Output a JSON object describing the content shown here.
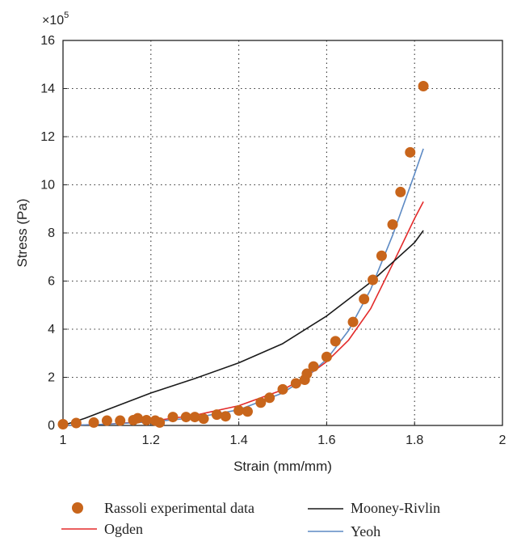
{
  "chart_data": {
    "type": "scatter",
    "xlabel": "Strain (mm/mm)",
    "ylabel": "Stress (Pa)",
    "y_multiplier": "×10^5",
    "y_multiplier_base": "×10",
    "y_multiplier_exp": "5",
    "xlim": [
      1,
      2
    ],
    "ylim": [
      0,
      16
    ],
    "x_ticks": [
      "1",
      "1.2",
      "1.4",
      "1.6",
      "1.8",
      "2"
    ],
    "y_ticks": [
      "0",
      "2",
      "4",
      "6",
      "8",
      "10",
      "12",
      "14",
      "16"
    ],
    "grid": "dotted",
    "legend_position": "bottom",
    "series": [
      {
        "name": "Rassoli experimental data",
        "kind": "scatter",
        "color": "#C8651B",
        "points": [
          [
            1.0,
            0.05
          ],
          [
            1.03,
            0.1
          ],
          [
            1.07,
            0.12
          ],
          [
            1.1,
            0.2
          ],
          [
            1.13,
            0.2
          ],
          [
            1.16,
            0.22
          ],
          [
            1.17,
            0.3
          ],
          [
            1.19,
            0.22
          ],
          [
            1.21,
            0.2
          ],
          [
            1.22,
            0.12
          ],
          [
            1.25,
            0.35
          ],
          [
            1.28,
            0.35
          ],
          [
            1.3,
            0.35
          ],
          [
            1.32,
            0.28
          ],
          [
            1.35,
            0.45
          ],
          [
            1.37,
            0.38
          ],
          [
            1.4,
            0.62
          ],
          [
            1.42,
            0.58
          ],
          [
            1.45,
            0.95
          ],
          [
            1.47,
            1.15
          ],
          [
            1.5,
            1.5
          ],
          [
            1.53,
            1.75
          ],
          [
            1.55,
            1.9
          ],
          [
            1.555,
            2.15
          ],
          [
            1.57,
            2.45
          ],
          [
            1.6,
            2.85
          ],
          [
            1.62,
            3.5
          ],
          [
            1.66,
            4.3
          ],
          [
            1.685,
            5.25
          ],
          [
            1.705,
            6.05
          ],
          [
            1.725,
            7.05
          ],
          [
            1.75,
            8.35
          ],
          [
            1.768,
            9.7
          ],
          [
            1.79,
            11.35
          ],
          [
            1.82,
            14.1
          ]
        ]
      },
      {
        "name": "Ogden",
        "kind": "line",
        "color": "#E32A2A",
        "points": [
          [
            1.0,
            0
          ],
          [
            1.1,
            0.05
          ],
          [
            1.2,
            0.18
          ],
          [
            1.3,
            0.42
          ],
          [
            1.4,
            0.82
          ],
          [
            1.5,
            1.48
          ],
          [
            1.55,
            1.98
          ],
          [
            1.6,
            2.65
          ],
          [
            1.65,
            3.55
          ],
          [
            1.7,
            4.85
          ],
          [
            1.75,
            6.7
          ],
          [
            1.8,
            8.6
          ],
          [
            1.82,
            9.3
          ]
        ]
      },
      {
        "name": "Mooney-Rivlin",
        "kind": "line",
        "color": "#1A1A1A",
        "points": [
          [
            1.0,
            0
          ],
          [
            1.05,
            0.3
          ],
          [
            1.1,
            0.65
          ],
          [
            1.2,
            1.35
          ],
          [
            1.3,
            1.95
          ],
          [
            1.4,
            2.6
          ],
          [
            1.5,
            3.4
          ],
          [
            1.6,
            4.55
          ],
          [
            1.7,
            5.95
          ],
          [
            1.8,
            7.6
          ],
          [
            1.82,
            8.1
          ]
        ]
      },
      {
        "name": "Yeoh",
        "kind": "line",
        "color": "#5D8AC4",
        "points": [
          [
            1.0,
            0
          ],
          [
            1.1,
            0.05
          ],
          [
            1.2,
            0.15
          ],
          [
            1.3,
            0.32
          ],
          [
            1.4,
            0.65
          ],
          [
            1.5,
            1.35
          ],
          [
            1.55,
            1.95
          ],
          [
            1.6,
            2.75
          ],
          [
            1.65,
            3.95
          ],
          [
            1.7,
            5.65
          ],
          [
            1.75,
            7.9
          ],
          [
            1.8,
            10.45
          ],
          [
            1.82,
            11.5
          ]
        ]
      }
    ]
  }
}
